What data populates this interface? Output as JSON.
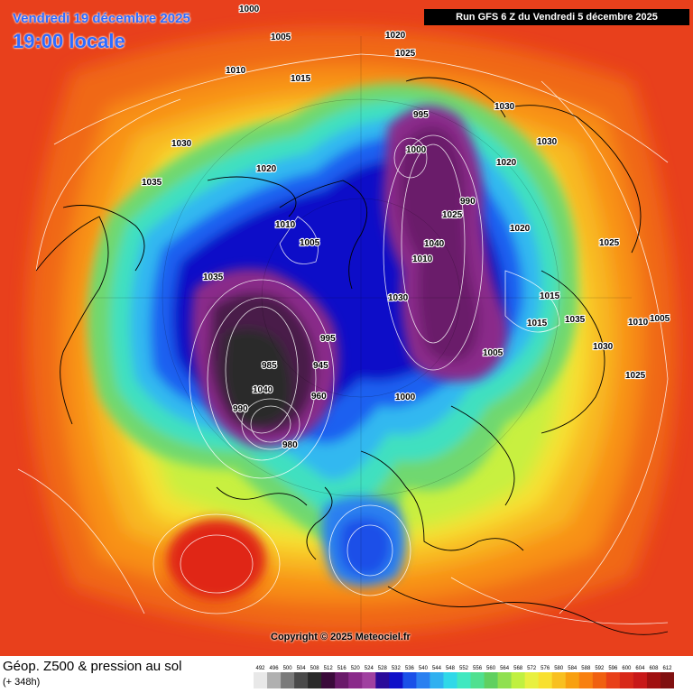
{
  "header": {
    "date": "Vendredi 19 décembre 2025",
    "local_time": "19:00 locale",
    "run": "Run GFS 6 Z du Vendredi 5 décembre 2025"
  },
  "copyright": "Copyright © 2025 Meteociel.fr",
  "footer": {
    "title": "Géop. Z500 & pression au sol",
    "subtitle": "(+ 348h)"
  },
  "colors": {
    "palette": [
      "#e8e8e8",
      "#b0b0b0",
      "#7a7a7a",
      "#4a4a4a",
      "#2a2a2a",
      "#3a0a3a",
      "#6a1a6a",
      "#8a2a8a",
      "#a040a0",
      "#2a0a9a",
      "#1010c8",
      "#1a50e8",
      "#2a80f0",
      "#30b0f0",
      "#30d8e8",
      "#40e8c0",
      "#50e090",
      "#60d060",
      "#90e050",
      "#c0f040",
      "#e8f040",
      "#f8e030",
      "#f8c020",
      "#f8a010",
      "#f88010",
      "#f06010",
      "#e84018",
      "#d82818",
      "#c81818",
      "#a01010",
      "#801010",
      "#600808",
      "#400404"
    ],
    "background_hot": "#e8401c",
    "header_text": "#2e6bff"
  },
  "scale": {
    "values": [
      "492",
      "496",
      "500",
      "504",
      "508",
      "512",
      "516",
      "520",
      "524",
      "528",
      "532",
      "536",
      "540",
      "544",
      "548",
      "552",
      "556",
      "560",
      "564",
      "568",
      "572",
      "576",
      "580",
      "584",
      "588",
      "592",
      "596",
      "600",
      "604",
      "608",
      "612"
    ]
  },
  "pressure_labels": [
    "1000",
    "1005",
    "1010",
    "1015",
    "1020",
    "1025",
    "1030",
    "1035",
    "1040",
    "995",
    "990",
    "985",
    "980",
    "960",
    "945",
    "1000",
    "1005",
    "1010",
    "1020",
    "1030",
    "1040",
    "1035",
    "1030",
    "1025",
    "1020",
    "1015",
    "1010",
    "1005",
    "1000",
    "995",
    "990",
    "1020",
    "1030",
    "1025",
    "1015",
    "1010",
    "1005",
    "1035",
    "1030",
    "1025"
  ]
}
